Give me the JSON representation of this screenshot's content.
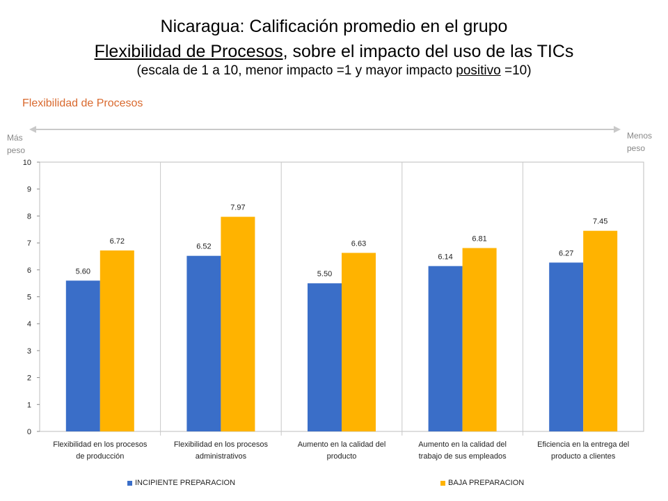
{
  "title": {
    "line1": "Nicaragua: Calificación promedio en el grupo",
    "line2_underlined": "Flexibilidad de Procesos",
    "line2_rest": ", sobre el impacto del uso de las TICs",
    "line3_a": "(escala de 1 a 10, menor impacto =1 y mayor impacto ",
    "line3_underlined": "positivo",
    "line3_b": " =10)"
  },
  "subtitle": "Flexibilidad de Procesos",
  "arrow": {
    "left_line1": "Más",
    "left_line2": "peso",
    "right_line1": "Menos",
    "right_line2": "peso"
  },
  "colors": {
    "series1": "#3a6ec8",
    "series2": "#ffb300",
    "subtitle": "#d9692e"
  },
  "chart_data": {
    "type": "bar",
    "title": "Flexibilidad de Procesos",
    "categories": [
      [
        "Flexibilidad en los procesos",
        "de producción"
      ],
      [
        "Flexibilidad en los procesos",
        "administrativos"
      ],
      [
        "Aumento en la calidad del",
        "producto"
      ],
      [
        "Aumento en la calidad del",
        "trabajo de sus empleados"
      ],
      [
        "Eficiencia en la entrega del",
        "producto a clientes"
      ]
    ],
    "series": [
      {
        "name": "INCIPIENTE PREPARACION",
        "values": [
          5.6,
          6.52,
          5.5,
          6.14,
          6.27
        ],
        "labels": [
          "5.60",
          "6.52",
          "5.50",
          "6.14",
          "6.27"
        ]
      },
      {
        "name": "BAJA PREPARACION",
        "values": [
          6.72,
          7.97,
          6.63,
          6.81,
          7.45
        ],
        "labels": [
          "6.72",
          "7.97",
          "6.63",
          "6.81",
          "7.45"
        ]
      }
    ],
    "ylim": [
      0,
      10
    ],
    "yticks": [
      0,
      1,
      2,
      3,
      4,
      5,
      6,
      7,
      8,
      9,
      10
    ],
    "grid": "vertical category separators",
    "legend": "bottom"
  }
}
